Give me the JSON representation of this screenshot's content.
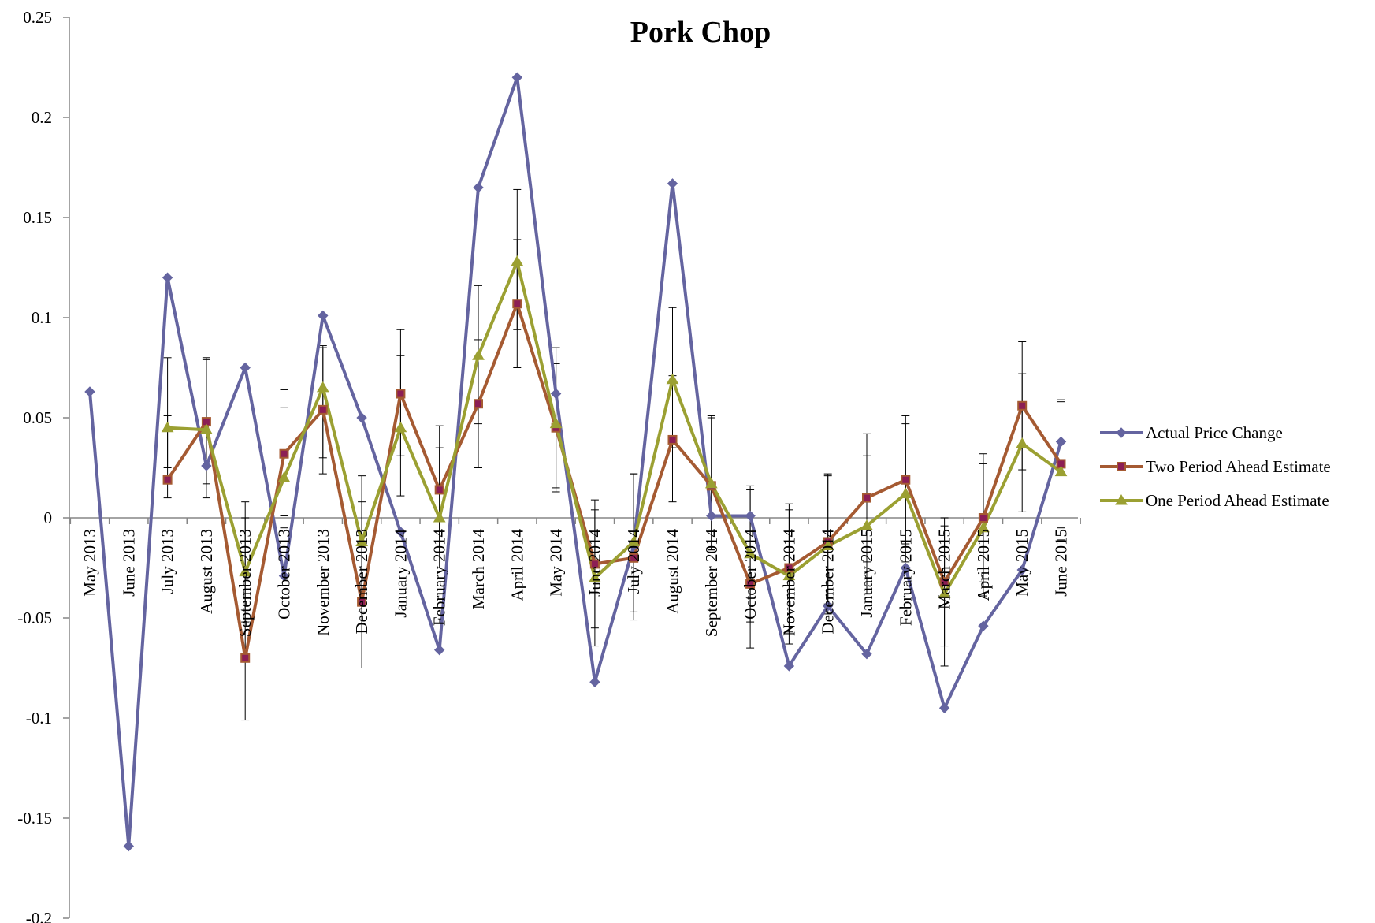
{
  "chart_data": {
    "type": "line",
    "title": "Pork Chop",
    "xlabel": "",
    "ylabel": "",
    "ylim": [
      -0.2,
      0.25
    ],
    "yticks": [
      0.25,
      0.2,
      0.15,
      0.1,
      0.05,
      0,
      -0.05,
      -0.1,
      -0.15,
      -0.2
    ],
    "ytick_labels": [
      "0.25",
      "0.2",
      "0.15",
      "0.1",
      "0.05",
      "0",
      "-0.05",
      "-0.1",
      "-0.15",
      "-0.2"
    ],
    "grid": false,
    "legend_position": "right",
    "categories": [
      "May 2013",
      "June 2013",
      "July 2013",
      "August 2013",
      "September 2013",
      "October 2013",
      "November 2013",
      "December 2013",
      "January 2014",
      "February 2014",
      "March 2014",
      "April 2014",
      "May 2014",
      "June 2014",
      "July 2014",
      "August 2014",
      "September 2014",
      "October 2014",
      "November 2014",
      "December 2014",
      "January 2015",
      "February 2015",
      "March 2015",
      "April 2015",
      "May 2015",
      "June 2015"
    ],
    "series": [
      {
        "name": "Actual Price Change",
        "color": "#6464a0",
        "marker": "diamond",
        "values": [
          0.063,
          -0.164,
          0.12,
          0.026,
          0.075,
          -0.029,
          0.101,
          0.05,
          -0.007,
          -0.066,
          0.165,
          0.22,
          0.062,
          -0.082,
          -0.014,
          0.167,
          0.001,
          0.001,
          -0.074,
          -0.044,
          -0.068,
          -0.025,
          -0.095,
          -0.054,
          -0.026,
          0.038
        ]
      },
      {
        "name": "Two Period Ahead Estimate",
        "color": "#a55a32",
        "marker_fill": "#8c1e55",
        "marker": "square",
        "values": [
          null,
          null,
          0.019,
          0.048,
          -0.07,
          0.032,
          0.054,
          -0.042,
          0.062,
          0.014,
          0.057,
          0.107,
          0.045,
          -0.023,
          -0.02,
          0.039,
          0.016,
          -0.033,
          -0.025,
          -0.012,
          0.01,
          0.019,
          -0.032,
          0.0,
          0.056,
          0.027
        ],
        "err_low": [
          null,
          null,
          0.01,
          0.017,
          -0.101,
          0.001,
          0.022,
          -0.075,
          0.031,
          -0.017,
          0.025,
          0.075,
          0.013,
          -0.055,
          -0.051,
          0.008,
          -0.016,
          -0.065,
          -0.057,
          -0.043,
          -0.022,
          -0.013,
          -0.064,
          -0.032,
          0.024,
          -0.005
        ],
        "err_high": [
          null,
          null,
          0.08,
          0.08,
          0.0,
          0.064,
          0.086,
          0.021,
          0.094,
          0.046,
          0.116,
          0.164,
          0.085,
          0.009,
          0.022,
          0.105,
          0.051,
          0.016,
          0.007,
          0.022,
          0.042,
          0.051,
          0.0,
          0.032,
          0.088,
          0.059
        ]
      },
      {
        "name": "One Period Ahead Estimate",
        "color": "#9ba032",
        "marker_fill": "#9ba032",
        "marker": "triangle",
        "values": [
          null,
          null,
          0.045,
          0.044,
          -0.027,
          0.02,
          0.065,
          -0.012,
          0.045,
          0.0,
          0.081,
          0.128,
          0.047,
          -0.03,
          -0.012,
          0.069,
          0.017,
          -0.018,
          -0.029,
          -0.014,
          -0.004,
          0.012,
          -0.038,
          -0.005,
          0.037,
          0.023
        ],
        "err_low": [
          null,
          null,
          0.025,
          0.01,
          -0.052,
          -0.005,
          0.03,
          -0.047,
          0.011,
          -0.025,
          0.047,
          0.094,
          0.015,
          -0.064,
          -0.047,
          0.035,
          -0.016,
          -0.052,
          -0.063,
          -0.048,
          -0.038,
          -0.022,
          -0.074,
          -0.039,
          0.003,
          -0.011
        ],
        "err_high": [
          null,
          null,
          0.051,
          0.079,
          0.008,
          0.055,
          0.085,
          0.008,
          0.081,
          0.035,
          0.089,
          0.139,
          0.077,
          0.004,
          0.022,
          0.071,
          0.05,
          0.014,
          0.004,
          0.021,
          0.031,
          0.047,
          -0.004,
          0.027,
          0.072,
          0.058
        ]
      }
    ]
  }
}
